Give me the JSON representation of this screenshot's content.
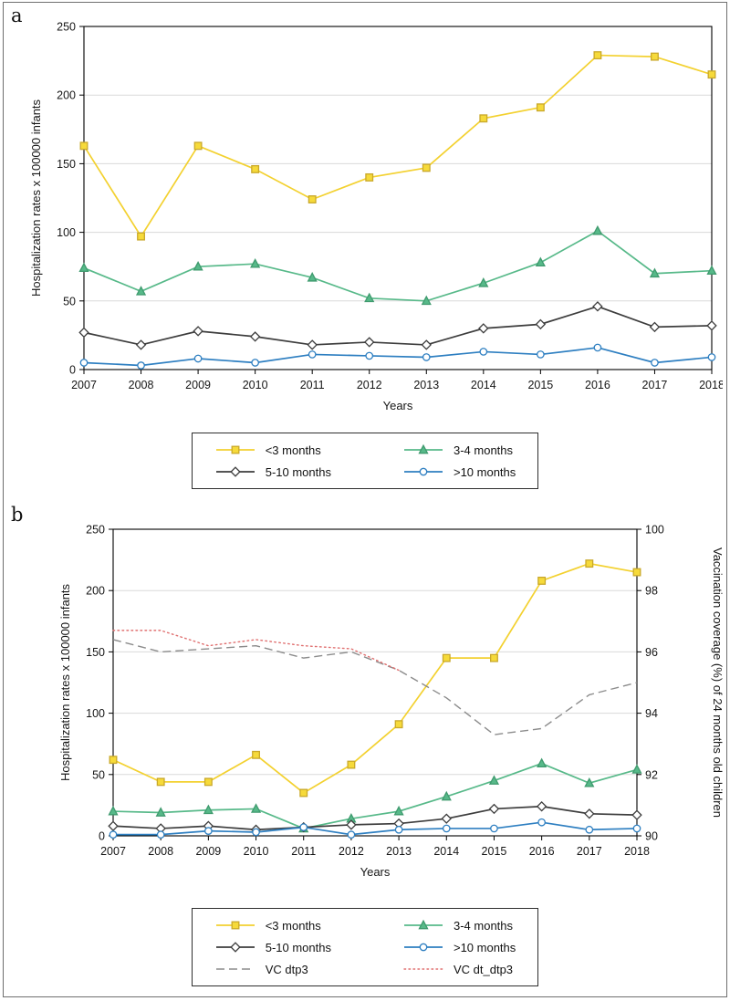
{
  "panels": [
    {
      "label": "a"
    },
    {
      "label": "b"
    }
  ],
  "chart_data": [
    {
      "type": "line",
      "xlabel": "Years",
      "ylabel": "Hospitalization rates x 100000 infants",
      "x": [
        2007,
        2008,
        2009,
        2010,
        2011,
        2012,
        2013,
        2014,
        2015,
        2016,
        2017,
        2018
      ],
      "ylim": [
        0,
        250
      ],
      "yticks": [
        0,
        50,
        100,
        150,
        200,
        250
      ],
      "grid": true,
      "legend_position": "bottom",
      "series": [
        {
          "name": "<3 months",
          "color": "#f3d130",
          "marker": "square",
          "marker_fill": "#f6da3a",
          "marker_stroke": "#c9a82a",
          "line_style": "solid",
          "values": [
            163,
            97,
            163,
            146,
            124,
            140,
            147,
            183,
            191,
            229,
            228,
            215
          ]
        },
        {
          "name": "3-4 months",
          "color": "#57b989",
          "marker": "triangle",
          "marker_fill": "#57b989",
          "marker_stroke": "#3f9a6e",
          "line_style": "solid",
          "values": [
            74,
            57,
            75,
            77,
            67,
            52,
            50,
            63,
            78,
            101,
            70,
            72
          ]
        },
        {
          "name": "5-10 months",
          "color": "#3d3d3d",
          "marker": "diamond",
          "marker_fill": "#ffffff",
          "marker_stroke": "#3d3d3d",
          "line_style": "solid",
          "values": [
            27,
            18,
            28,
            24,
            18,
            20,
            18,
            30,
            33,
            46,
            31,
            32
          ]
        },
        {
          "name": ">10 months",
          "color": "#2e7fc1",
          "marker": "circle",
          "marker_fill": "#ffffff",
          "marker_stroke": "#2e7fc1",
          "line_style": "solid",
          "values": [
            5,
            3,
            8,
            5,
            11,
            10,
            9,
            13,
            11,
            16,
            5,
            9
          ]
        }
      ]
    },
    {
      "type": "line",
      "xlabel": "Years",
      "ylabel": "Hospitalization rates x 100000 infants",
      "x": [
        2007,
        2008,
        2009,
        2010,
        2011,
        2012,
        2013,
        2014,
        2015,
        2016,
        2017,
        2018
      ],
      "ylim": [
        0,
        250
      ],
      "yticks": [
        0,
        50,
        100,
        150,
        200,
        250
      ],
      "grid": true,
      "legend_position": "bottom",
      "y2": {
        "label": "Vaccination coverage (%) of 24 months old children",
        "lim": [
          90,
          100
        ],
        "ticks": [
          90,
          92,
          94,
          96,
          98,
          100
        ]
      },
      "series": [
        {
          "name": "<3 months",
          "color": "#f3d130",
          "marker": "square",
          "marker_fill": "#f6da3a",
          "marker_stroke": "#c9a82a",
          "line_style": "solid",
          "values": [
            62,
            44,
            44,
            66,
            35,
            58,
            91,
            145,
            145,
            208,
            222,
            215
          ]
        },
        {
          "name": "3-4 months",
          "color": "#57b989",
          "marker": "triangle",
          "marker_fill": "#57b989",
          "marker_stroke": "#3f9a6e",
          "line_style": "solid",
          "values": [
            20,
            19,
            21,
            22,
            6,
            14,
            20,
            32,
            45,
            59,
            43,
            54
          ]
        },
        {
          "name": "5-10 months",
          "color": "#3d3d3d",
          "marker": "diamond",
          "marker_fill": "#ffffff",
          "marker_stroke": "#3d3d3d",
          "line_style": "solid",
          "values": [
            8,
            6,
            8,
            5,
            7,
            9,
            10,
            14,
            22,
            24,
            18,
            17
          ]
        },
        {
          "name": ">10 months",
          "color": "#2e7fc1",
          "marker": "circle",
          "marker_fill": "#ffffff",
          "marker_stroke": "#2e7fc1",
          "line_style": "solid",
          "values": [
            1,
            1,
            4,
            3,
            7,
            1,
            5,
            6,
            6,
            11,
            5,
            6
          ]
        },
        {
          "name": "VC dtp3",
          "color": "#8c8c8c",
          "marker": null,
          "line_style": "dashed",
          "axis": "right",
          "values": [
            96.4,
            96.0,
            96.1,
            96.2,
            95.8,
            96.0,
            95.4,
            94.5,
            93.3,
            93.5,
            94.6,
            95.0
          ]
        },
        {
          "name": "VC dt_dtp3",
          "color": "#e07070",
          "marker": null,
          "line_style": "dotted",
          "axis": "right",
          "values": [
            96.7,
            96.7,
            96.2,
            96.4,
            96.2,
            96.1,
            95.4,
            null,
            null,
            null,
            null,
            null
          ]
        }
      ]
    }
  ]
}
